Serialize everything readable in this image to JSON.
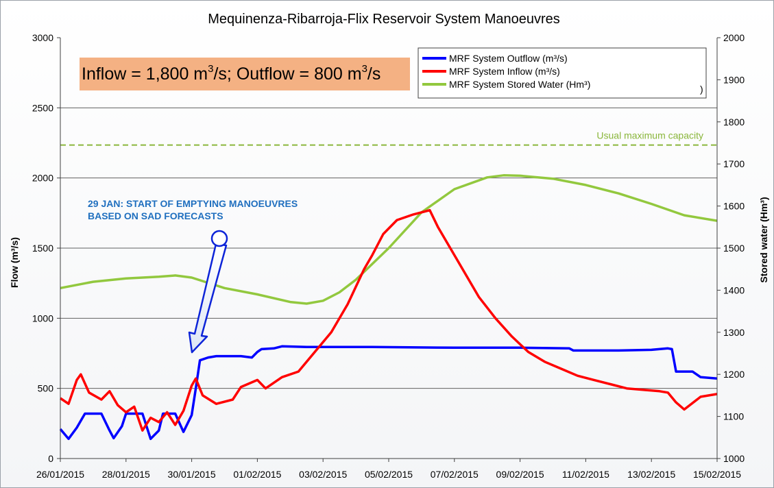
{
  "chart_data": {
    "type": "line",
    "title": "Mequinenza-Ribarroja-Flix  Reservoir System Manoeuvres",
    "ylabel": "Flow (m³/s)",
    "y2label": "Stored water (Hm³)",
    "ylim": [
      0,
      3000
    ],
    "y2lim": [
      1000,
      2000
    ],
    "yticks": [
      "0",
      "500",
      "1000",
      "1500",
      "2000",
      "2500",
      "3000"
    ],
    "y2ticks": [
      "1000",
      "1100",
      "1200",
      "1300",
      "1400",
      "1500",
      "1600",
      "1700",
      "1800",
      "1900",
      "2000"
    ],
    "xlim": [
      "2015-01-26",
      "2015-02-15"
    ],
    "xticks": [
      "26/01/2015",
      "28/01/2015",
      "30/01/2015",
      "01/02/2015",
      "03/02/2015",
      "05/02/2015",
      "07/02/2015",
      "09/02/2015",
      "11/02/2015",
      "13/02/2015",
      "15/02/2015"
    ],
    "grid": "horizontal",
    "legend_position": "top-right",
    "series": [
      {
        "name": "MRF System Outflow (m³/s)",
        "axis": "left",
        "color": "#0000ff",
        "points": [
          [
            "2015-01-26T00:00",
            210
          ],
          [
            "2015-01-26T06:00",
            140
          ],
          [
            "2015-01-26T12:00",
            220
          ],
          [
            "2015-01-26T18:00",
            320
          ],
          [
            "2015-01-27T06:00",
            320
          ],
          [
            "2015-01-27T12:00",
            200
          ],
          [
            "2015-01-27T15:00",
            145
          ],
          [
            "2015-01-27T21:00",
            230
          ],
          [
            "2015-01-28T00:00",
            320
          ],
          [
            "2015-01-28T12:00",
            320
          ],
          [
            "2015-01-28T18:00",
            140
          ],
          [
            "2015-01-29T00:00",
            200
          ],
          [
            "2015-01-29T03:00",
            320
          ],
          [
            "2015-01-29T12:00",
            320
          ],
          [
            "2015-01-29T18:00",
            190
          ],
          [
            "2015-01-29T21:00",
            250
          ],
          [
            "2015-01-30T00:00",
            310
          ],
          [
            "2015-01-30T03:00",
            500
          ],
          [
            "2015-01-30T06:00",
            700
          ],
          [
            "2015-01-30T12:00",
            720
          ],
          [
            "2015-01-30T18:00",
            730
          ],
          [
            "2015-01-31T12:00",
            730
          ],
          [
            "2015-01-31T20:00",
            720
          ],
          [
            "2015-02-01T00:00",
            760
          ],
          [
            "2015-02-01T03:00",
            780
          ],
          [
            "2015-02-01T12:00",
            785
          ],
          [
            "2015-02-01T18:00",
            800
          ],
          [
            "2015-02-02T12:00",
            795
          ],
          [
            "2015-02-04T12:00",
            795
          ],
          [
            "2015-02-07T00:00",
            790
          ],
          [
            "2015-02-09T00:00",
            790
          ],
          [
            "2015-02-10T12:00",
            785
          ],
          [
            "2015-02-10T15:00",
            770
          ],
          [
            "2015-02-12T00:00",
            770
          ],
          [
            "2015-02-13T00:00",
            775
          ],
          [
            "2015-02-13T12:00",
            785
          ],
          [
            "2015-02-13T15:00",
            780
          ],
          [
            "2015-02-13T18:00",
            620
          ],
          [
            "2015-02-14T06:00",
            620
          ],
          [
            "2015-02-14T12:00",
            580
          ],
          [
            "2015-02-15T00:00",
            570
          ]
        ]
      },
      {
        "name": "MRF System Inflow (m³/s)",
        "axis": "left",
        "color": "#ff0000",
        "points": [
          [
            "2015-01-26T00:00",
            430
          ],
          [
            "2015-01-26T06:00",
            390
          ],
          [
            "2015-01-26T12:00",
            560
          ],
          [
            "2015-01-26T15:00",
            600
          ],
          [
            "2015-01-26T21:00",
            470
          ],
          [
            "2015-01-27T06:00",
            420
          ],
          [
            "2015-01-27T12:00",
            480
          ],
          [
            "2015-01-27T18:00",
            380
          ],
          [
            "2015-01-28T00:00",
            330
          ],
          [
            "2015-01-28T06:00",
            370
          ],
          [
            "2015-01-28T12:00",
            200
          ],
          [
            "2015-01-28T18:00",
            290
          ],
          [
            "2015-01-29T00:00",
            260
          ],
          [
            "2015-01-29T06:00",
            330
          ],
          [
            "2015-01-29T12:00",
            240
          ],
          [
            "2015-01-29T18:00",
            340
          ],
          [
            "2015-01-30T00:00",
            520
          ],
          [
            "2015-01-30T03:00",
            570
          ],
          [
            "2015-01-30T08:00",
            450
          ],
          [
            "2015-01-30T18:00",
            390
          ],
          [
            "2015-01-31T06:00",
            420
          ],
          [
            "2015-01-31T12:00",
            510
          ],
          [
            "2015-02-01T00:00",
            560
          ],
          [
            "2015-02-01T06:00",
            500
          ],
          [
            "2015-02-01T18:00",
            580
          ],
          [
            "2015-02-02T06:00",
            620
          ],
          [
            "2015-02-02T18:00",
            760
          ],
          [
            "2015-02-03T06:00",
            900
          ],
          [
            "2015-02-03T18:00",
            1100
          ],
          [
            "2015-02-04T06:00",
            1350
          ],
          [
            "2015-02-04T12:00",
            1450
          ],
          [
            "2015-02-04T20:00",
            1600
          ],
          [
            "2015-02-05T06:00",
            1700
          ],
          [
            "2015-02-05T18:00",
            1740
          ],
          [
            "2015-02-06T06:00",
            1770
          ],
          [
            "2015-02-06T12:00",
            1650
          ],
          [
            "2015-02-06T18:00",
            1550
          ],
          [
            "2015-02-07T06:00",
            1350
          ],
          [
            "2015-02-07T18:00",
            1150
          ],
          [
            "2015-02-08T06:00",
            1000
          ],
          [
            "2015-02-08T18:00",
            870
          ],
          [
            "2015-02-09T06:00",
            760
          ],
          [
            "2015-02-09T18:00",
            690
          ],
          [
            "2015-02-10T06:00",
            640
          ],
          [
            "2015-02-10T18:00",
            590
          ],
          [
            "2015-02-11T06:00",
            560
          ],
          [
            "2015-02-11T18:00",
            530
          ],
          [
            "2015-02-12T06:00",
            500
          ],
          [
            "2015-02-12T18:00",
            490
          ],
          [
            "2015-02-13T06:00",
            480
          ],
          [
            "2015-02-13T12:00",
            470
          ],
          [
            "2015-02-13T18:00",
            400
          ],
          [
            "2015-02-14T00:00",
            350
          ],
          [
            "2015-02-14T12:00",
            440
          ],
          [
            "2015-02-15T00:00",
            460
          ]
        ]
      },
      {
        "name": "MRF System Stored Water (Hm³)",
        "axis": "right",
        "color": "#92c83e",
        "points": [
          [
            "2015-01-26T00:00",
            1405
          ],
          [
            "2015-01-27T00:00",
            1420
          ],
          [
            "2015-01-28T00:00",
            1428
          ],
          [
            "2015-01-29T00:00",
            1432
          ],
          [
            "2015-01-29T12:00",
            1435
          ],
          [
            "2015-01-30T00:00",
            1430
          ],
          [
            "2015-01-31T00:00",
            1405
          ],
          [
            "2015-02-01T00:00",
            1390
          ],
          [
            "2015-02-02T00:00",
            1372
          ],
          [
            "2015-02-02T12:00",
            1368
          ],
          [
            "2015-02-03T00:00",
            1375
          ],
          [
            "2015-02-03T12:00",
            1395
          ],
          [
            "2015-02-04T00:00",
            1425
          ],
          [
            "2015-02-05T00:00",
            1500
          ],
          [
            "2015-02-06T00:00",
            1585
          ],
          [
            "2015-02-07T00:00",
            1640
          ],
          [
            "2015-02-08T00:00",
            1668
          ],
          [
            "2015-02-08T12:00",
            1673
          ],
          [
            "2015-02-09T00:00",
            1672
          ],
          [
            "2015-02-10T00:00",
            1665
          ],
          [
            "2015-02-11T00:00",
            1650
          ],
          [
            "2015-02-12T00:00",
            1630
          ],
          [
            "2015-02-13T00:00",
            1605
          ],
          [
            "2015-02-14T00:00",
            1578
          ],
          [
            "2015-02-15T00:00",
            1565
          ]
        ]
      }
    ],
    "reference_line": {
      "label": "Usual maximum capacity",
      "axis": "right",
      "value": 1745,
      "color": "#8ab63b"
    },
    "legend_extra_mark": ")"
  },
  "callout": {
    "before": "Inflow = 1,800 m",
    "exp1": "3",
    "middle": "/s; Outflow = 800 m",
    "exp2": "3",
    "after": "/s"
  },
  "annotation": {
    "line1": "29 JAN: START OF EMPTYING MANOEUVRES",
    "line2": "BASED ON SAD FORECASTS"
  }
}
